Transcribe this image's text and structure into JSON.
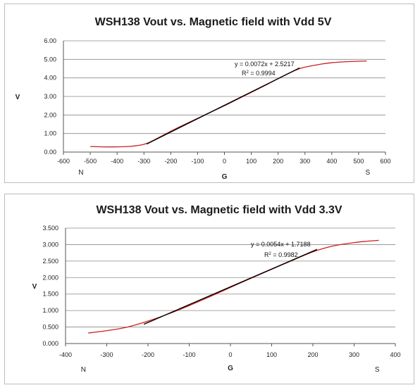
{
  "chart_data": [
    {
      "type": "line",
      "title": "WSH138 Vout vs. Magnetic field with Vdd 5V",
      "xlabel": "G",
      "ylabel": "V",
      "pole_left": "N",
      "pole_right": "S",
      "xlim": [
        -600,
        600
      ],
      "ylim": [
        0,
        6
      ],
      "x_ticks": [
        -600,
        -500,
        -400,
        -300,
        -200,
        -100,
        0,
        100,
        200,
        300,
        400,
        500,
        600
      ],
      "y_ticks": [
        "0.00",
        "1.00",
        "2.00",
        "3.00",
        "4.00",
        "5.00",
        "6.00"
      ],
      "grid": "horizontal",
      "trendline": {
        "equation": "y = 0.0072x + 2.5217",
        "r2_prefix": "R",
        "r2_value": " = 0.9994",
        "x_range": [
          -290,
          280
        ],
        "slope": 0.0072,
        "intercept": 2.5217
      },
      "series": [
        {
          "color": "#cc1f1f",
          "x": [
            -500,
            -450,
            -400,
            -350,
            -320,
            -300,
            -280,
            -250,
            -200,
            -150,
            -100,
            -50,
            0,
            50,
            100,
            150,
            200,
            250,
            280,
            300,
            350,
            400,
            450,
            500,
            530
          ],
          "y": [
            0.3,
            0.28,
            0.28,
            0.31,
            0.36,
            0.42,
            0.52,
            0.74,
            1.12,
            1.48,
            1.82,
            2.16,
            2.5,
            2.86,
            3.22,
            3.58,
            3.96,
            4.32,
            4.5,
            4.58,
            4.72,
            4.82,
            4.87,
            4.9,
            4.91
          ]
        }
      ]
    },
    {
      "type": "line",
      "title": "WSH138 Vout vs. Magnetic field with Vdd 3.3V",
      "xlabel": "G",
      "ylabel": "V",
      "pole_left": "N",
      "pole_right": "S",
      "xlim": [
        -400,
        400
      ],
      "ylim": [
        0,
        3.5
      ],
      "x_ticks": [
        -400,
        -300,
        -200,
        -100,
        0,
        100,
        200,
        300,
        400
      ],
      "y_ticks": [
        "0.000",
        "0.500",
        "1.000",
        "1.500",
        "2.000",
        "2.500",
        "3.000",
        "3.500"
      ],
      "grid": "horizontal",
      "trendline": {
        "equation": "y = 0.0054x + 1.7188",
        "r2_prefix": "R",
        "r2_value": " = 0.9982",
        "x_range": [
          -210,
          210
        ],
        "slope": 0.0054,
        "intercept": 1.7188
      },
      "series": [
        {
          "color": "#cc1f1f",
          "x": [
            -345,
            -300,
            -250,
            -200,
            -150,
            -100,
            -50,
            0,
            50,
            100,
            150,
            200,
            250,
            300,
            330,
            360
          ],
          "y": [
            0.32,
            0.39,
            0.5,
            0.68,
            0.9,
            1.15,
            1.42,
            1.7,
            1.98,
            2.25,
            2.52,
            2.78,
            2.96,
            3.06,
            3.1,
            3.13
          ]
        }
      ]
    }
  ]
}
